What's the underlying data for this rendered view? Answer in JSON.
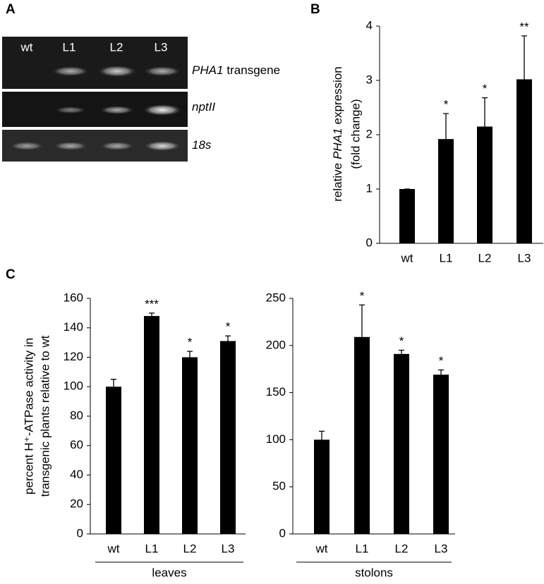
{
  "gel": {
    "panel_label": "A",
    "lanes": [
      "wt",
      "L1",
      "L2",
      "L3"
    ],
    "rows": [
      {
        "italic": "PHA1",
        "text": "transgene"
      },
      {
        "italic": "nptII"
      },
      {
        "italic": "18s"
      }
    ]
  },
  "chart_data": [
    {
      "type": "bar",
      "panel_label": "B",
      "ylabel": [
        {
          "pre": "relative",
          "italic": "PHA1",
          "post": "expression"
        },
        "(fold change)"
      ],
      "categories": [
        "wt",
        "L1",
        "L2",
        "L3"
      ],
      "values": [
        1.0,
        1.92,
        2.15,
        3.02
      ],
      "errors": [
        0.0,
        0.47,
        0.53,
        0.8
      ],
      "annotations": [
        null,
        "*",
        "*",
        "**"
      ],
      "color": "#000000",
      "ylim": [
        0,
        4
      ],
      "yticks": [
        0,
        1,
        2,
        3,
        4
      ]
    },
    {
      "type": "bar",
      "panel_label": "C",
      "ylabel": [
        "percent H⁺-ATPase activity in",
        "transgenic plants relative to wt"
      ],
      "xlabel": "leaves",
      "categories": [
        "wt",
        "L1",
        "L2",
        "L3"
      ],
      "values": [
        100,
        148,
        120,
        131
      ],
      "errors": [
        5,
        2,
        4,
        3.5
      ],
      "annotations": [
        null,
        "***",
        "*",
        "*"
      ],
      "color": "#000000",
      "ylim": [
        0,
        160
      ],
      "yticks": [
        0,
        20,
        40,
        60,
        80,
        100,
        120,
        140,
        160
      ]
    },
    {
      "type": "bar",
      "xlabel": "stolons",
      "categories": [
        "wt",
        "L1",
        "L2",
        "L3"
      ],
      "values": [
        100,
        209,
        191,
        169
      ],
      "errors": [
        9,
        34,
        4,
        5
      ],
      "annotations": [
        null,
        "*",
        "*",
        "*"
      ],
      "color": "#000000",
      "ylim": [
        0,
        250
      ],
      "yticks": [
        0,
        50,
        100,
        150,
        200,
        250
      ]
    }
  ]
}
